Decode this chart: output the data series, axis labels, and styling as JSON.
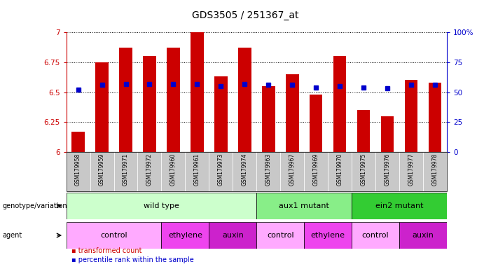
{
  "title": "GDS3505 / 251367_at",
  "samples": [
    "GSM179958",
    "GSM179959",
    "GSM179971",
    "GSM179972",
    "GSM179960",
    "GSM179961",
    "GSM179973",
    "GSM179974",
    "GSM179963",
    "GSM179967",
    "GSM179969",
    "GSM179970",
    "GSM179975",
    "GSM179976",
    "GSM179977",
    "GSM179978"
  ],
  "bar_values": [
    6.17,
    6.75,
    6.87,
    6.8,
    6.87,
    7.0,
    6.63,
    6.87,
    6.55,
    6.65,
    6.48,
    6.8,
    6.35,
    6.3,
    6.6,
    6.58
  ],
  "blue_values": [
    6.52,
    6.56,
    6.57,
    6.57,
    6.57,
    6.57,
    6.55,
    6.57,
    6.56,
    6.56,
    6.54,
    6.55,
    6.54,
    6.53,
    6.56,
    6.56
  ],
  "ylim": [
    6.0,
    7.0
  ],
  "y2lim": [
    0,
    100
  ],
  "yticks": [
    6.0,
    6.25,
    6.5,
    6.75,
    7.0
  ],
  "ytick_labels": [
    "6",
    "6.25",
    "6.5",
    "6.75",
    "7"
  ],
  "y2ticks": [
    0,
    25,
    50,
    75,
    100
  ],
  "y2tick_labels": [
    "0",
    "25",
    "50",
    "75",
    "100%"
  ],
  "bar_color": "#cc0000",
  "blue_color": "#0000cc",
  "cell_bg": "#c8c8c8",
  "genotype_groups": [
    {
      "label": "wild type",
      "start": 0,
      "end": 8,
      "color": "#ccffcc"
    },
    {
      "label": "aux1 mutant",
      "start": 8,
      "end": 12,
      "color": "#88ee88"
    },
    {
      "label": "ein2 mutant",
      "start": 12,
      "end": 16,
      "color": "#33cc33"
    }
  ],
  "agent_groups": [
    {
      "label": "control",
      "start": 0,
      "end": 4,
      "color": "#ffaaff"
    },
    {
      "label": "ethylene",
      "start": 4,
      "end": 6,
      "color": "#ee44ee"
    },
    {
      "label": "auxin",
      "start": 6,
      "end": 8,
      "color": "#cc22cc"
    },
    {
      "label": "control",
      "start": 8,
      "end": 10,
      "color": "#ffaaff"
    },
    {
      "label": "ethylene",
      "start": 10,
      "end": 12,
      "color": "#ee44ee"
    },
    {
      "label": "control",
      "start": 12,
      "end": 14,
      "color": "#ffaaff"
    },
    {
      "label": "auxin",
      "start": 14,
      "end": 16,
      "color": "#cc22cc"
    }
  ],
  "legend_bar_label": "transformed count",
  "legend_blue_label": "percentile rank within the sample",
  "tick_color_left": "#cc0000",
  "tick_color_right": "#0000cc"
}
